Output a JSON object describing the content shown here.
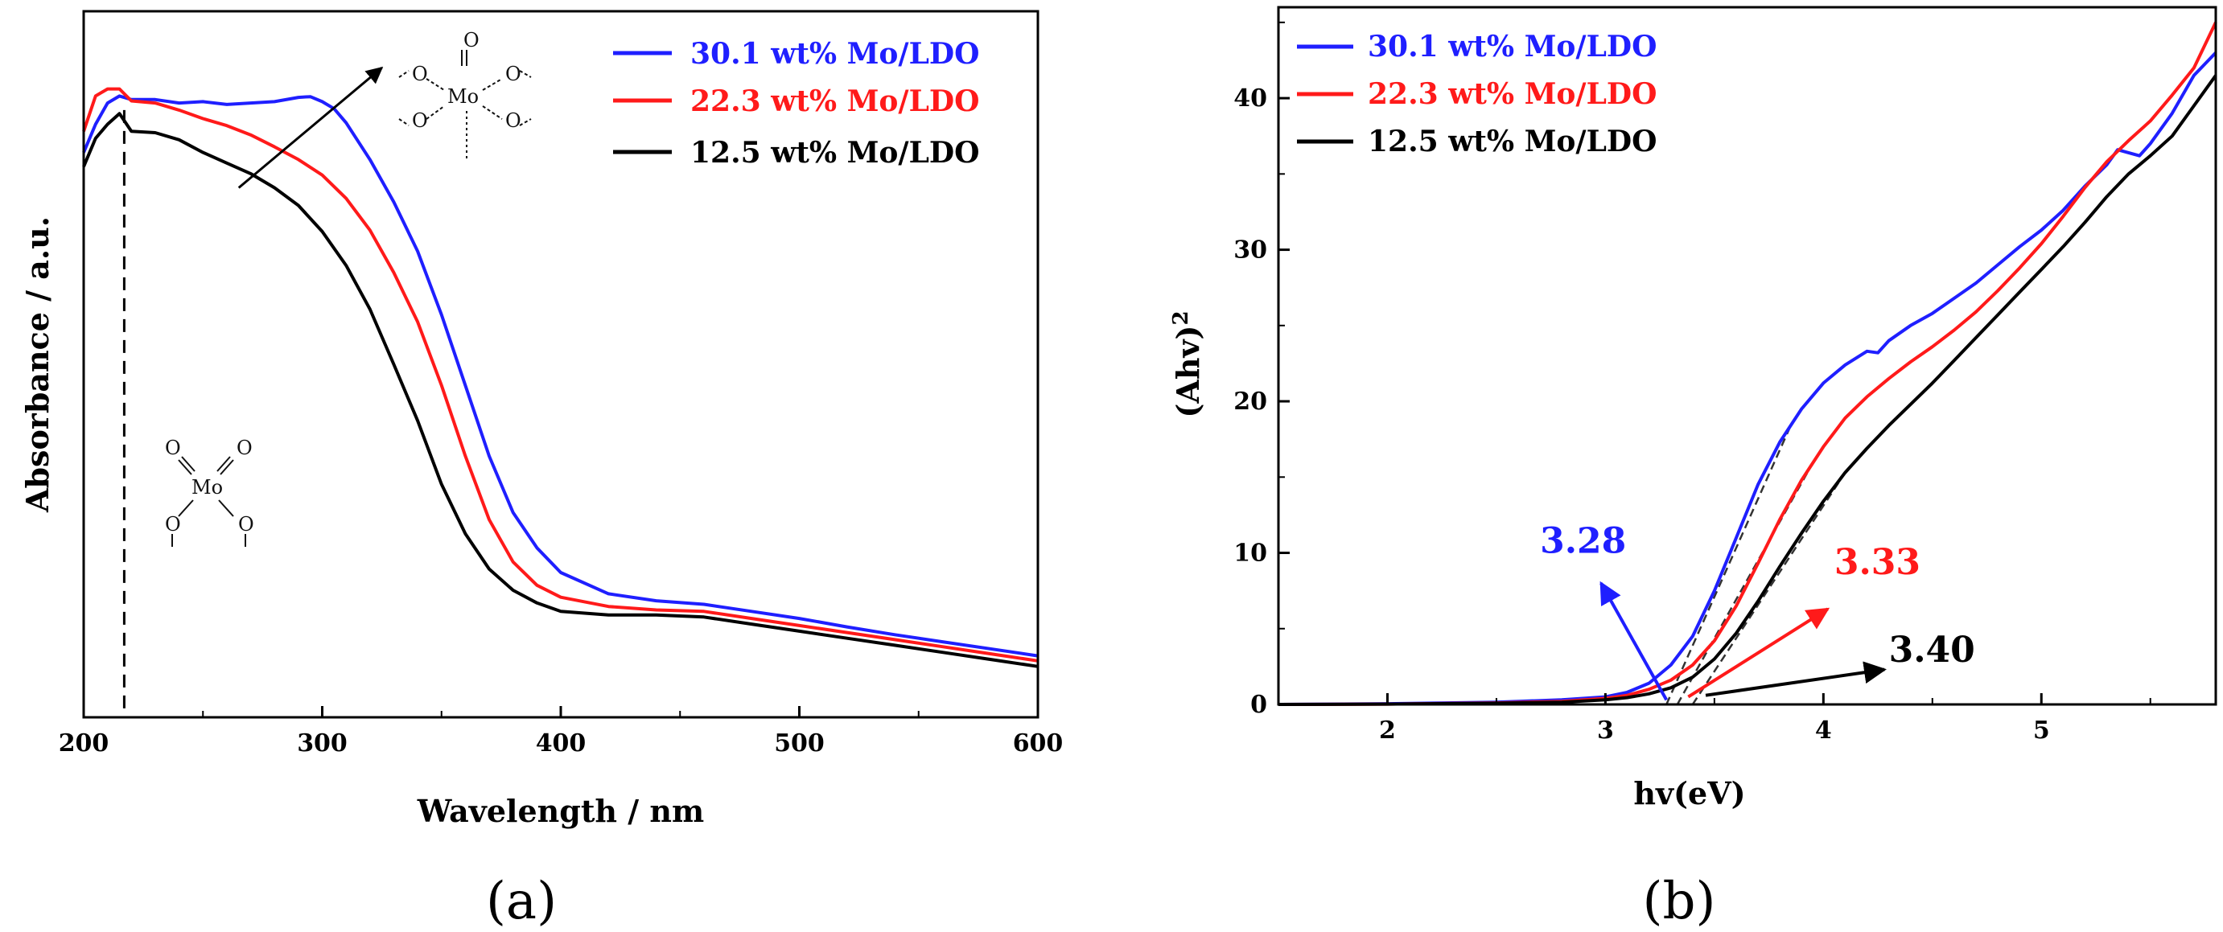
{
  "chart_data": [
    {
      "panel": "a",
      "type": "line",
      "panel_label": "(a)",
      "xlabel": "Wavelength / nm",
      "ylabel": "Absorbance / a.u.",
      "xlim": [
        200,
        600
      ],
      "ylim": [
        0,
        1
      ],
      "xticks": [
        "200",
        "300",
        "400",
        "500",
        "600"
      ],
      "yticks": [],
      "series": [
        {
          "name": "30.1 wt% Mo/LDO",
          "color": "#1f1fff",
          "x": [
            200,
            205,
            210,
            215,
            220,
            230,
            240,
            250,
            260,
            270,
            280,
            290,
            295,
            300,
            305,
            310,
            320,
            330,
            340,
            350,
            360,
            370,
            380,
            390,
            400,
            420,
            440,
            460,
            480,
            500,
            520,
            540,
            560,
            580,
            600
          ],
          "y": [
            0.8,
            0.84,
            0.87,
            0.88,
            0.875,
            0.875,
            0.87,
            0.872,
            0.868,
            0.87,
            0.872,
            0.878,
            0.879,
            0.872,
            0.862,
            0.842,
            0.79,
            0.73,
            0.66,
            0.57,
            0.47,
            0.37,
            0.29,
            0.24,
            0.205,
            0.175,
            0.165,
            0.16,
            0.15,
            0.14,
            0.128,
            0.117,
            0.107,
            0.097,
            0.087
          ]
        },
        {
          "name": "22.3 wt% Mo/LDO",
          "color": "#ff1a1a",
          "x": [
            200,
            205,
            210,
            215,
            220,
            230,
            240,
            250,
            260,
            270,
            280,
            290,
            300,
            310,
            320,
            330,
            340,
            350,
            360,
            370,
            380,
            390,
            400,
            420,
            440,
            460,
            480,
            500,
            520,
            540,
            560,
            580,
            600
          ],
          "y": [
            0.83,
            0.88,
            0.89,
            0.89,
            0.873,
            0.87,
            0.86,
            0.848,
            0.838,
            0.825,
            0.808,
            0.79,
            0.768,
            0.735,
            0.69,
            0.63,
            0.56,
            0.47,
            0.37,
            0.28,
            0.22,
            0.187,
            0.17,
            0.157,
            0.152,
            0.15,
            0.14,
            0.13,
            0.12,
            0.11,
            0.1,
            0.09,
            0.08
          ]
        },
        {
          "name": "12.5 wt% Mo/LDO",
          "color": "#000000",
          "x": [
            200,
            205,
            210,
            215,
            220,
            230,
            240,
            250,
            260,
            270,
            280,
            290,
            300,
            310,
            320,
            330,
            340,
            350,
            360,
            370,
            380,
            390,
            400,
            420,
            440,
            460,
            480,
            500,
            520,
            540,
            560,
            580,
            600
          ],
          "y": [
            0.78,
            0.82,
            0.84,
            0.855,
            0.83,
            0.828,
            0.818,
            0.8,
            0.785,
            0.77,
            0.75,
            0.725,
            0.688,
            0.64,
            0.578,
            0.5,
            0.42,
            0.33,
            0.26,
            0.21,
            0.18,
            0.162,
            0.15,
            0.145,
            0.145,
            0.142,
            0.132,
            0.122,
            0.112,
            0.102,
            0.092,
            0.082,
            0.072
          ]
        }
      ],
      "dashed_line_x": 217,
      "arrow_from": [
        265,
        0.75
      ],
      "arrow_to": [
        325,
        0.92
      ],
      "structures": [
        {
          "kind": "octahedral",
          "atoms": [
            "O",
            "O",
            "O",
            "Mo",
            "O",
            "O"
          ]
        },
        {
          "kind": "tetrahedral",
          "atoms": [
            "O",
            "O",
            "Mo",
            "O",
            "O"
          ]
        }
      ]
    },
    {
      "panel": "b",
      "type": "line",
      "panel_label": "(b)",
      "xlabel": "hv(eV)",
      "ylabel_main": "(Ahv)",
      "ylabel_sup": "2",
      "xlim": [
        1.5,
        5.8
      ],
      "ylim": [
        0,
        46
      ],
      "xticks": [
        2,
        3,
        4,
        5
      ],
      "yticks": [
        0,
        10,
        20,
        30,
        40
      ],
      "series": [
        {
          "name": "30.1 wt% Mo/LDO",
          "color": "#1f1fff",
          "x": [
            1.5,
            2.0,
            2.5,
            2.8,
            3.0,
            3.1,
            3.2,
            3.3,
            3.4,
            3.5,
            3.6,
            3.7,
            3.8,
            3.9,
            4.0,
            4.1,
            4.2,
            4.25,
            4.3,
            4.4,
            4.5,
            4.6,
            4.7,
            4.8,
            4.9,
            5.0,
            5.1,
            5.2,
            5.3,
            5.35,
            5.4,
            5.45,
            5.5,
            5.6,
            5.7,
            5.8
          ],
          "y": [
            0,
            0.05,
            0.15,
            0.3,
            0.5,
            0.8,
            1.4,
            2.6,
            4.5,
            7.5,
            11,
            14.5,
            17.3,
            19.5,
            21.2,
            22.4,
            23.3,
            23.2,
            24,
            25,
            25.8,
            26.8,
            27.8,
            29,
            30.2,
            31.3,
            32.6,
            34.2,
            35.6,
            36.6,
            36.4,
            36.2,
            37,
            39,
            41.5,
            43
          ]
        },
        {
          "name": "22.3 wt% Mo/LDO",
          "color": "#ff1a1a",
          "x": [
            1.5,
            2.0,
            2.5,
            2.8,
            3.0,
            3.1,
            3.2,
            3.3,
            3.4,
            3.5,
            3.6,
            3.7,
            3.8,
            3.9,
            4.0,
            4.1,
            4.2,
            4.3,
            4.4,
            4.5,
            4.6,
            4.7,
            4.8,
            4.9,
            5.0,
            5.1,
            5.2,
            5.3,
            5.4,
            5.5,
            5.6,
            5.7,
            5.8
          ],
          "y": [
            0,
            0.02,
            0.1,
            0.2,
            0.4,
            0.6,
            1.0,
            1.6,
            2.6,
            4.2,
            6.5,
            9.3,
            12.2,
            14.8,
            17.0,
            18.9,
            20.3,
            21.5,
            22.6,
            23.6,
            24.7,
            25.9,
            27.3,
            28.8,
            30.4,
            32.2,
            34.1,
            35.8,
            37.2,
            38.5,
            40.2,
            42,
            45
          ]
        },
        {
          "name": "12.5 wt% Mo/LDO",
          "color": "#000000",
          "x": [
            1.5,
            2.0,
            2.5,
            2.8,
            3.0,
            3.1,
            3.2,
            3.3,
            3.4,
            3.5,
            3.6,
            3.7,
            3.8,
            3.9,
            4.0,
            4.1,
            4.2,
            4.3,
            4.4,
            4.5,
            4.6,
            4.7,
            4.8,
            4.9,
            5.0,
            5.1,
            5.2,
            5.3,
            5.4,
            5.5,
            5.6,
            5.7,
            5.8
          ],
          "y": [
            0,
            0.02,
            0.08,
            0.15,
            0.3,
            0.45,
            0.7,
            1.1,
            1.8,
            3.0,
            4.7,
            6.8,
            9.1,
            11.3,
            13.4,
            15.3,
            16.9,
            18.4,
            19.8,
            21.2,
            22.7,
            24.2,
            25.7,
            27.2,
            28.7,
            30.2,
            31.8,
            33.5,
            35,
            36.2,
            37.5,
            39.5,
            41.5
          ]
        }
      ],
      "annotations": [
        {
          "text": "3.28",
          "color": "#1f1fff",
          "arrow_from": [
            3.28,
            0.3
          ],
          "arrow_to": [
            2.98,
            8.0
          ],
          "label_at": [
            2.7,
            10.0
          ]
        },
        {
          "text": "3.33",
          "color": "#ff1a1a",
          "arrow_from": [
            3.38,
            0.5
          ],
          "arrow_to": [
            4.02,
            6.3
          ],
          "label_at": [
            4.05,
            8.6
          ]
        },
        {
          "text": "3.40",
          "color": "#000000",
          "arrow_from": [
            3.46,
            0.6
          ],
          "arrow_to": [
            4.28,
            2.3
          ],
          "label_at": [
            4.3,
            2.8
          ]
        }
      ],
      "tangents": [
        {
          "color": "#1f1fff",
          "x": [
            3.28,
            3.85
          ]
        },
        {
          "color": "#ff1a1a",
          "x": [
            3.33,
            3.95
          ]
        },
        {
          "color": "#000000",
          "x": [
            3.4,
            4.1
          ]
        }
      ]
    }
  ]
}
